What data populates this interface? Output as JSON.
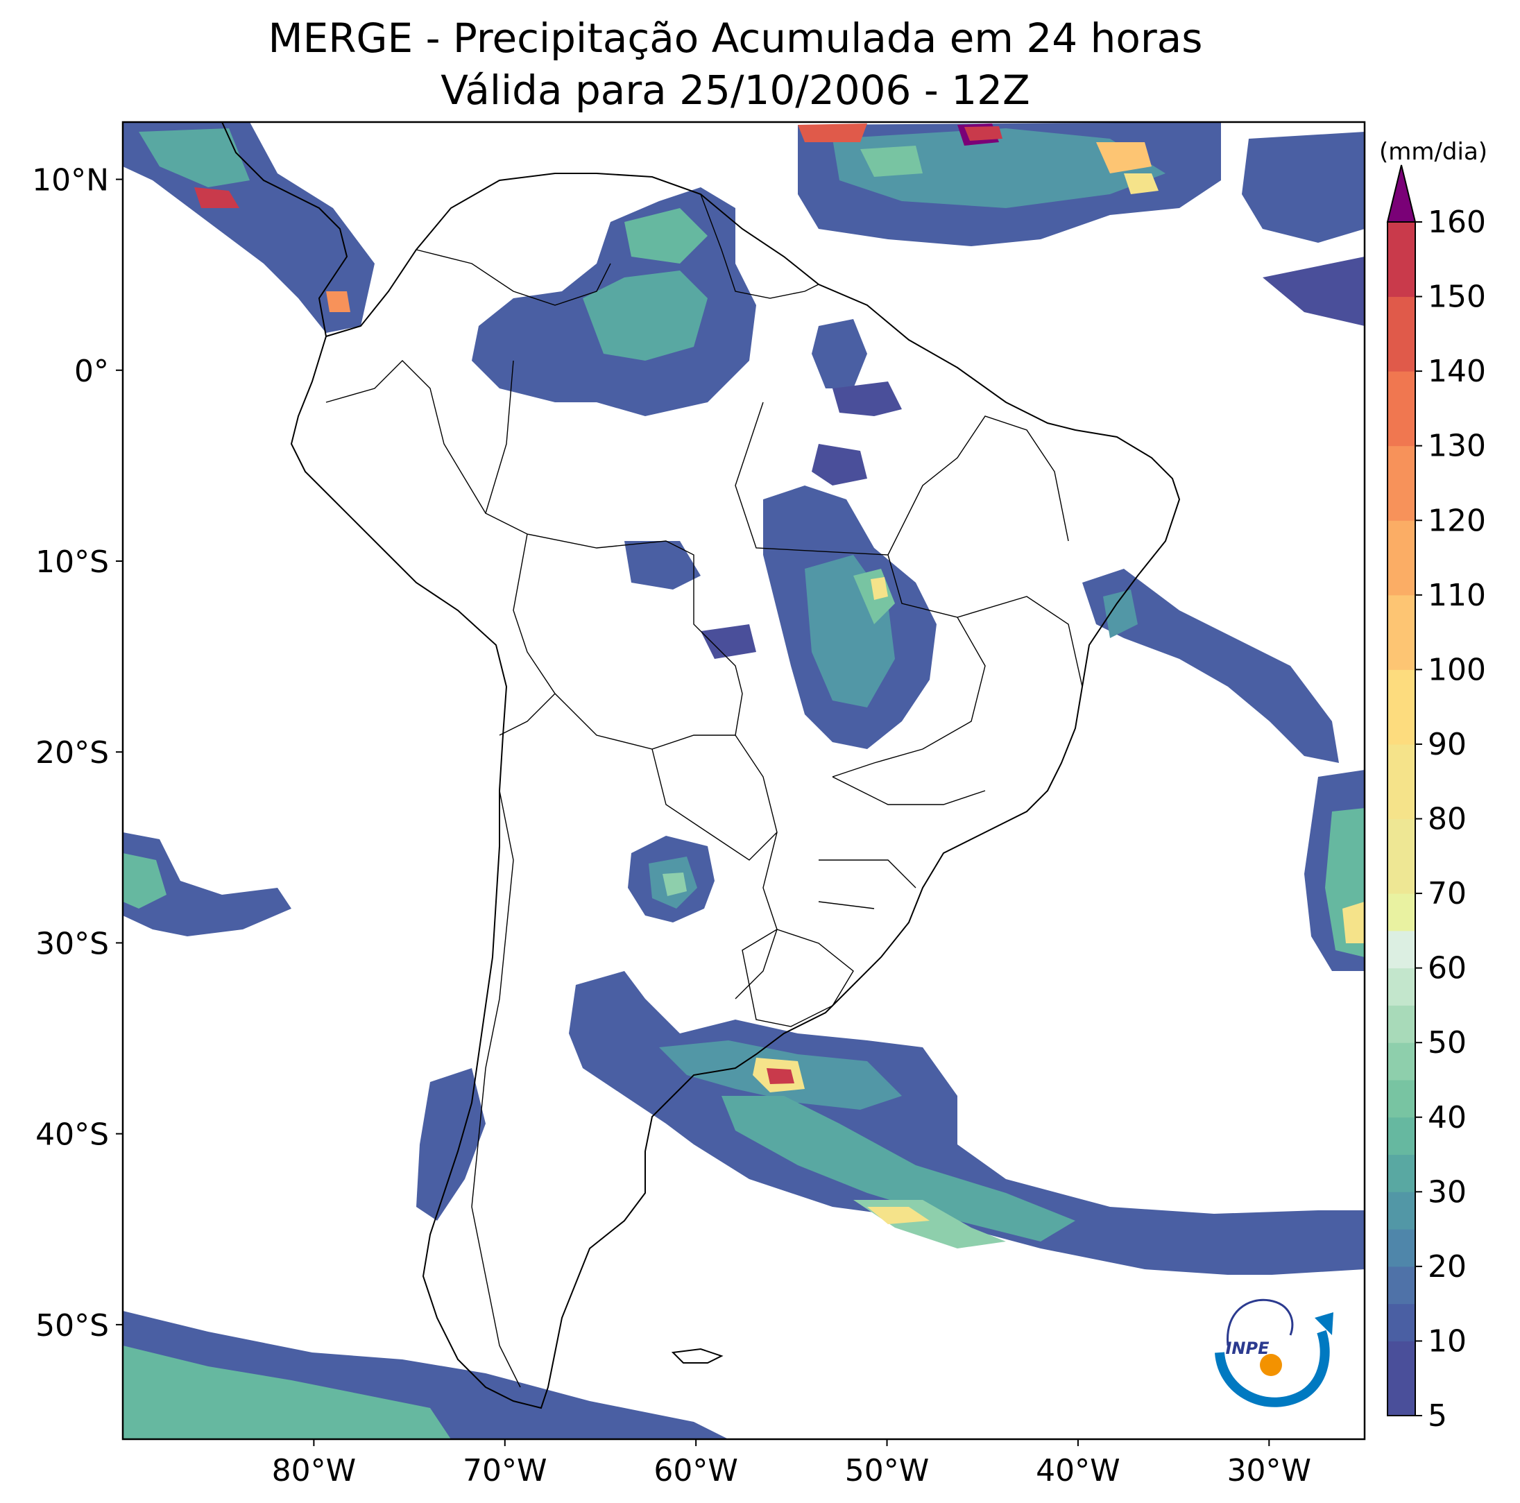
{
  "map": {
    "title_line1": "MERGE - Precipitação Acumulada em 24 horas",
    "title_line2": "Válida para 25/10/2006 - 12Z",
    "lon_range": [
      -90,
      -25
    ],
    "lat_range": [
      -56,
      13
    ],
    "lat_ticks": [
      {
        "value": 10,
        "label": "10°N"
      },
      {
        "value": 0,
        "label": "0°"
      },
      {
        "value": -10,
        "label": "10°S"
      },
      {
        "value": -20,
        "label": "20°S"
      },
      {
        "value": -30,
        "label": "30°S"
      },
      {
        "value": -40,
        "label": "40°S"
      },
      {
        "value": -50,
        "label": "50°S"
      }
    ],
    "lon_ticks": [
      {
        "value": -80,
        "label": "80°W"
      },
      {
        "value": -70,
        "label": "70°W"
      },
      {
        "value": -60,
        "label": "60°W"
      },
      {
        "value": -50,
        "label": "50°W"
      },
      {
        "value": -40,
        "label": "40°W"
      },
      {
        "value": -30,
        "label": "30°W"
      }
    ]
  },
  "colorbar": {
    "unit_label": "(mm/dia)",
    "min": 5,
    "max": 160,
    "ticks": [
      5,
      10,
      20,
      30,
      40,
      50,
      60,
      70,
      80,
      90,
      100,
      110,
      120,
      130,
      140,
      150,
      160
    ],
    "extend": "max",
    "extend_color": "#7a0177",
    "colors": [
      {
        "from": 5,
        "to": 10,
        "color": "#4a4f9a"
      },
      {
        "from": 10,
        "to": 15,
        "color": "#4a5fa3"
      },
      {
        "from": 15,
        "to": 20,
        "color": "#4f72a8"
      },
      {
        "from": 20,
        "to": 25,
        "color": "#4f86aa"
      },
      {
        "from": 25,
        "to": 30,
        "color": "#5297a6"
      },
      {
        "from": 30,
        "to": 35,
        "color": "#59a8a2"
      },
      {
        "from": 35,
        "to": 40,
        "color": "#66b8a0"
      },
      {
        "from": 40,
        "to": 45,
        "color": "#78c4a2"
      },
      {
        "from": 45,
        "to": 50,
        "color": "#8ecfac"
      },
      {
        "from": 50,
        "to": 55,
        "color": "#a8dab9"
      },
      {
        "from": 55,
        "to": 60,
        "color": "#c3e6cc"
      },
      {
        "from": 60,
        "to": 65,
        "color": "#dcefe2"
      },
      {
        "from": 65,
        "to": 70,
        "color": "#e9f2a1"
      },
      {
        "from": 70,
        "to": 80,
        "color": "#eee794"
      },
      {
        "from": 80,
        "to": 90,
        "color": "#f5e38a"
      },
      {
        "from": 90,
        "to": 100,
        "color": "#fddc7e"
      },
      {
        "from": 100,
        "to": 110,
        "color": "#fdc573"
      },
      {
        "from": 110,
        "to": 120,
        "color": "#fbad65"
      },
      {
        "from": 120,
        "to": 130,
        "color": "#f7925a"
      },
      {
        "from": 130,
        "to": 140,
        "color": "#f07750"
      },
      {
        "from": 140,
        "to": 150,
        "color": "#e05a4a"
      },
      {
        "from": 150,
        "to": 160,
        "color": "#c93a4b"
      }
    ]
  },
  "logo": {
    "text": "INPE",
    "icon": "inpe-logo-icon"
  }
}
